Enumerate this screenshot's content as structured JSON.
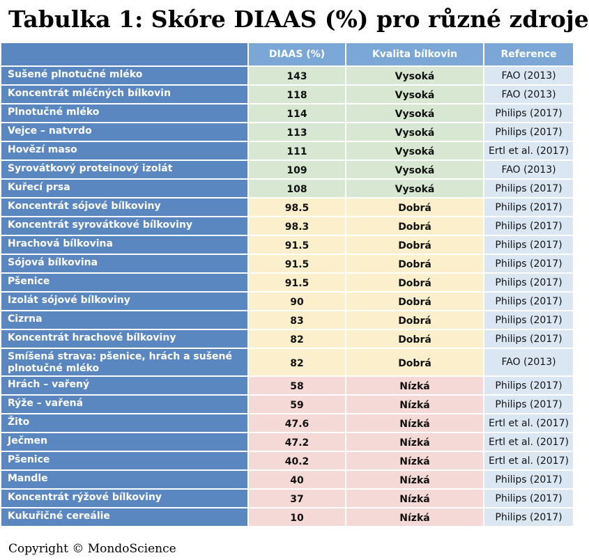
{
  "title": "Tabulka 1: Skóre DIAAS (%) pro různé zdroje",
  "headers": {
    "diaas": "DIAAS (%)",
    "quality": "Kvalita bílkovin",
    "reference": "Reference"
  },
  "rows": [
    {
      "name": "Sušené plnotučné mléko",
      "diaas": "143",
      "quality": "Vysoká",
      "ref": "FAO (2013)"
    },
    {
      "name": "Koncentrát mléčných bílkovin",
      "diaas": "118",
      "quality": "Vysoká",
      "ref": "FAO (2013)"
    },
    {
      "name": "Plnotučné mléko",
      "diaas": "114",
      "quality": "Vysoká",
      "ref": "Philips (2017)"
    },
    {
      "name": "Vejce – natvrdo",
      "diaas": "113",
      "quality": "Vysoká",
      "ref": "Philips (2017)"
    },
    {
      "name": "Hovězí maso",
      "diaas": "111",
      "quality": "Vysoká",
      "ref": "Ertl et al. (2017)"
    },
    {
      "name": "Syrovátkový proteinový izolát",
      "diaas": "109",
      "quality": "Vysoká",
      "ref": "FAO (2013)"
    },
    {
      "name": "Kuřecí prsa",
      "diaas": "108",
      "quality": "Vysoká",
      "ref": "Philips (2017)"
    },
    {
      "name": "Koncentrát sójové bílkoviny",
      "diaas": "98.5",
      "quality": "Dobrá",
      "ref": "Philips (2017)"
    },
    {
      "name": "Koncentrát syrovátkové bílkoviny",
      "diaas": "98.3",
      "quality": "Dobrá",
      "ref": "Philips (2017)"
    },
    {
      "name": "Hrachová bílkovina",
      "diaas": "91.5",
      "quality": "Dobrá",
      "ref": "Philips (2017)"
    },
    {
      "name": "Sójová bílkovina",
      "diaas": "91.5",
      "quality": "Dobrá",
      "ref": "Philips (2017)"
    },
    {
      "name": "Pšenice",
      "diaas": "91.5",
      "quality": "Dobrá",
      "ref": "Philips (2017)"
    },
    {
      "name": "Izolát sójové bílkoviny",
      "diaas": "90",
      "quality": "Dobrá",
      "ref": "Philips (2017)"
    },
    {
      "name": "Cizrna",
      "diaas": "83",
      "quality": "Dobrá",
      "ref": "Philips (2017)"
    },
    {
      "name": "Koncentrát hrachové bílkoviny",
      "diaas": "82",
      "quality": "Dobrá",
      "ref": "Philips (2017)"
    },
    {
      "name": "Smíšená strava: pšenice, hrách a sušené plnotučné mléko",
      "diaas": "82",
      "quality": "Dobrá",
      "ref": "FAO (2013)"
    },
    {
      "name": "Hrách – vařený",
      "diaas": "58",
      "quality": "Nízká",
      "ref": "Philips (2017)"
    },
    {
      "name": "Rýže – vařená",
      "diaas": "59",
      "quality": "Nízká",
      "ref": "Philips (2017)"
    },
    {
      "name": "Žito",
      "diaas": "47.6",
      "quality": "Nízká",
      "ref": "Ertl et al. (2017)"
    },
    {
      "name": "Ječmen",
      "diaas": "47.2",
      "quality": "Nízká",
      "ref": "Ertl et al. (2017)"
    },
    {
      "name": "Pšenice",
      "diaas": "40.2",
      "quality": "Nízká",
      "ref": "Ertl et al. (2017)"
    },
    {
      "name": "Mandle",
      "diaas": "40",
      "quality": "Nízká",
      "ref": "Philips (2017)"
    },
    {
      "name": "Koncentrát rýžové bílkoviny",
      "diaas": "37",
      "quality": "Nízká",
      "ref": "Philips (2017)"
    },
    {
      "name": "Kukuřičné cereálie",
      "diaas": "10",
      "quality": "Nízká",
      "ref": "Philips (2017)"
    }
  ],
  "copyright": "Copyright © MondoScience"
}
